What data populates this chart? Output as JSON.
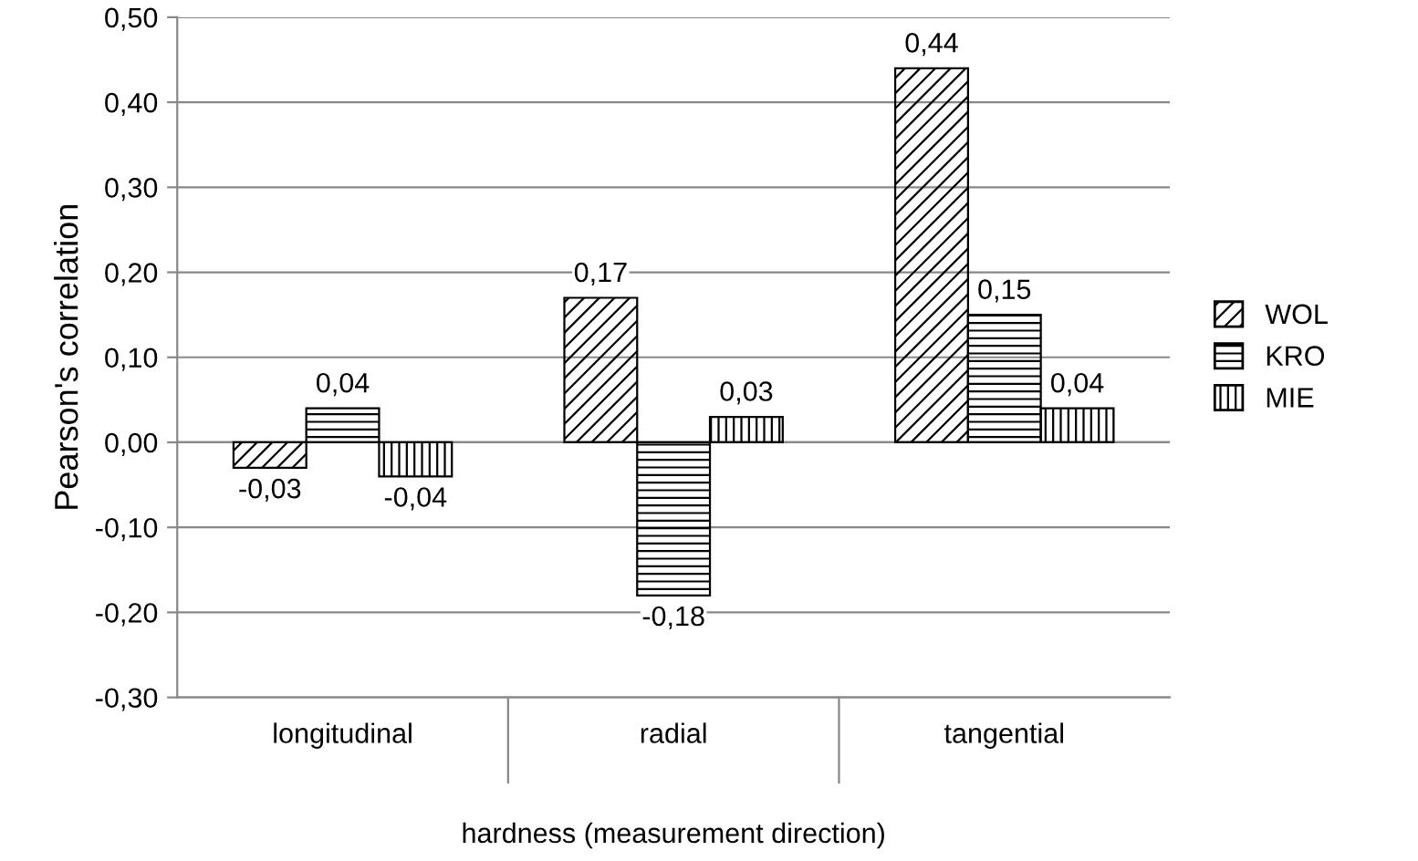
{
  "chart_data": {
    "type": "bar",
    "xlabel": "hardness (measurement direction)",
    "ylabel": "Pearson's correlation",
    "categories": [
      "longitudinal",
      "radial",
      "tangential"
    ],
    "series": [
      {
        "name": "WOL",
        "color": "#000000",
        "values": [
          -0.03,
          0.17,
          0.44
        ],
        "value_labels": [
          "-0,03",
          "0,17",
          "0,44"
        ]
      },
      {
        "name": "KRO",
        "color": "#000000",
        "values": [
          0.04,
          -0.18,
          0.15
        ],
        "value_labels": [
          "0,04",
          "-0,18",
          "0,15"
        ]
      },
      {
        "name": "MIE",
        "color": "#000000",
        "values": [
          -0.04,
          0.03,
          0.04
        ],
        "value_labels": [
          "-0,04",
          "0,03",
          "0,04"
        ]
      }
    ],
    "ylim": [
      -0.3,
      0.5
    ],
    "yticks": [
      {
        "value": -0.3,
        "label": "-0,30"
      },
      {
        "value": -0.2,
        "label": "-0,20"
      },
      {
        "value": -0.1,
        "label": "-0,10"
      },
      {
        "value": 0,
        "label": "0,00"
      },
      {
        "value": 0.1,
        "label": "0,10"
      },
      {
        "value": 0.2,
        "label": "0,20"
      },
      {
        "value": 0.3,
        "label": "0,30"
      },
      {
        "value": 0.4,
        "label": "0,40"
      },
      {
        "value": 0.5,
        "label": "0,50"
      }
    ],
    "grid": "y",
    "legend": "right"
  }
}
